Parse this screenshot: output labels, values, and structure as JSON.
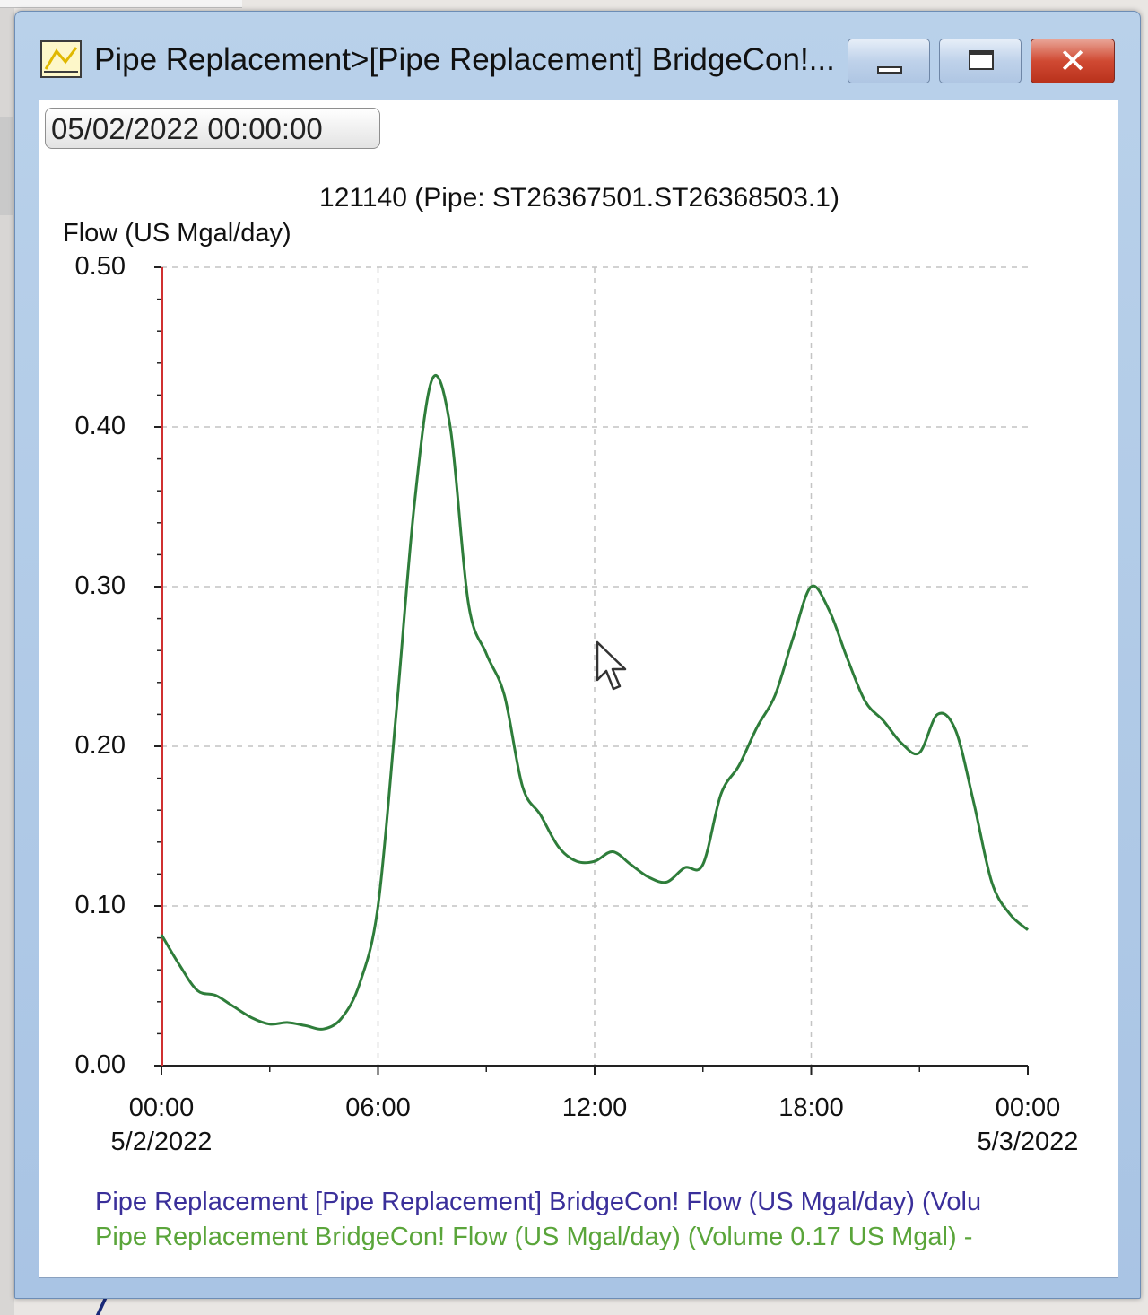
{
  "window": {
    "title": "Pipe Replacement>[Pipe Replacement] BridgeCon!...",
    "controls": {
      "minimize": "minimize",
      "maximize": "maximize",
      "close": "close"
    }
  },
  "toolbar": {
    "date_value": "05/02/2022 00:00:00"
  },
  "chart_data": {
    "type": "line",
    "title": "121140 (Pipe: ST26367501.ST26368503.1)",
    "ylabel": "Flow (US Mgal/day)",
    "xlabel": "",
    "ylim": [
      0,
      0.5
    ],
    "xlim": [
      0,
      24
    ],
    "yticks": [
      "0.00",
      "0.10",
      "0.20",
      "0.30",
      "0.40",
      "0.50"
    ],
    "xticks": [
      {
        "line1": "00:00",
        "line2": "5/2/2022"
      },
      {
        "line1": "06:00",
        "line2": ""
      },
      {
        "line1": "12:00",
        "line2": ""
      },
      {
        "line1": "18:00",
        "line2": ""
      },
      {
        "line1": "00:00",
        "line2": "5/3/2022"
      }
    ],
    "grid": true,
    "series": [
      {
        "name": "Pipe Replacement BridgeCon! Flow (US Mgal/day) (Volume 0.17 US Mgal)",
        "color": "#2e7d3a",
        "x": [
          0,
          0.5,
          1,
          1.5,
          2,
          2.5,
          3,
          3.5,
          4,
          4.5,
          5,
          5.5,
          6,
          6.5,
          7,
          7.5,
          8,
          8.5,
          9,
          9.5,
          10,
          10.5,
          11,
          11.5,
          12,
          12.5,
          13,
          13.5,
          14,
          14.5,
          15,
          15.5,
          16,
          16.5,
          17,
          17.5,
          18,
          18.5,
          19,
          19.5,
          20,
          20.5,
          21,
          21.5,
          22,
          22.5,
          23,
          23.5,
          24
        ],
        "y": [
          0.082,
          0.063,
          0.047,
          0.044,
          0.037,
          0.03,
          0.026,
          0.027,
          0.025,
          0.023,
          0.03,
          0.052,
          0.1,
          0.22,
          0.35,
          0.43,
          0.4,
          0.29,
          0.258,
          0.232,
          0.175,
          0.157,
          0.137,
          0.128,
          0.128,
          0.134,
          0.126,
          0.118,
          0.115,
          0.124,
          0.126,
          0.17,
          0.188,
          0.212,
          0.232,
          0.268,
          0.3,
          0.285,
          0.255,
          0.228,
          0.216,
          0.202,
          0.196,
          0.22,
          0.21,
          0.165,
          0.115,
          0.095,
          0.085
        ]
      }
    ],
    "legend": [
      {
        "text": "Pipe Replacement [Pipe Replacement] BridgeCon! Flow (US Mgal/day) (Volu",
        "color": "#3a2f9a"
      },
      {
        "text": "Pipe Replacement BridgeCon! Flow (US Mgal/day) (Volume 0.17 US Mgal)  -",
        "color": "#5aa53a"
      }
    ]
  }
}
